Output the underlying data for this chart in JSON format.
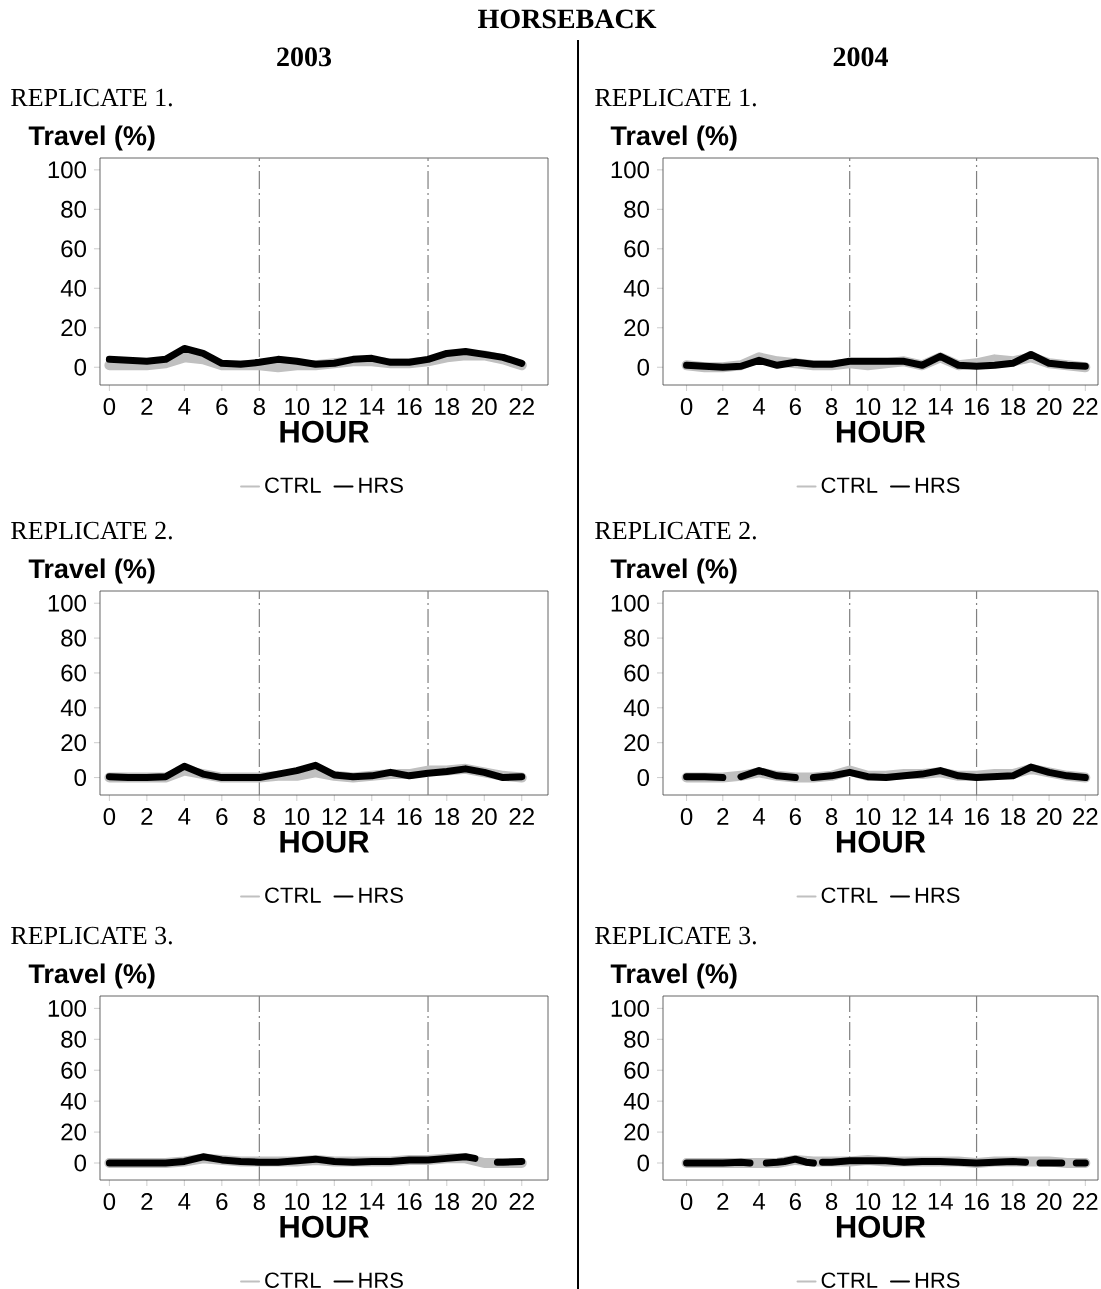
{
  "chart_data": [
    {
      "type": "line",
      "annotations": [
        "HORSEBACK"
      ],
      "title": "2003",
      "subtitle": "REPLICATE 1.",
      "xlabel": "HOUR",
      "ylabel": "Travel (%)",
      "x": [
        0,
        1,
        2,
        3,
        4,
        5,
        6,
        7,
        8,
        9,
        10,
        11,
        12,
        13,
        14,
        15,
        16,
        17,
        18,
        19,
        20,
        21,
        22
      ],
      "xlim": [
        -0.5,
        23.4
      ],
      "ylim": [
        -9,
        106
      ],
      "xticks": [
        0,
        2,
        4,
        6,
        8,
        10,
        12,
        14,
        16,
        18,
        20,
        22
      ],
      "yticks": [
        0,
        20,
        40,
        60,
        80,
        100
      ],
      "legend": "bottom",
      "ref_lines": [
        {
          "axis": "x",
          "value": 8,
          "color": "#808080"
        },
        {
          "axis": "x",
          "value": 17,
          "color": "#808080"
        }
      ],
      "series": [
        {
          "name": "CTRL",
          "color": "#c0c0c0",
          "values": [
            1,
            1,
            1,
            2,
            5,
            4,
            1,
            1,
            1,
            0,
            1,
            1,
            2,
            3,
            3,
            2,
            2,
            3,
            5,
            6,
            6,
            4,
            1
          ]
        },
        {
          "name": "HRS",
          "color": "#000000",
          "values": [
            4,
            3.5,
            3,
            4,
            9.5,
            7,
            2,
            1.5,
            2.5,
            4,
            3,
            1.5,
            2,
            4,
            4.5,
            2.5,
            2.5,
            4,
            7,
            8,
            6.5,
            5,
            2
          ]
        }
      ]
    },
    {
      "type": "line",
      "title": "2004",
      "subtitle": "REPLICATE 1.",
      "xlabel": "HOUR",
      "ylabel": "Travel (%)",
      "x": [
        0,
        1,
        2,
        3,
        4,
        5,
        6,
        7,
        8,
        9,
        10,
        11,
        12,
        13,
        14,
        15,
        16,
        17,
        18,
        19,
        20,
        21,
        22
      ],
      "xlim": [
        -1.3,
        22.7
      ],
      "ylim": [
        -9,
        106
      ],
      "xticks": [
        0,
        2,
        4,
        6,
        8,
        10,
        12,
        14,
        16,
        18,
        20,
        22
      ],
      "yticks": [
        0,
        20,
        40,
        60,
        80,
        100
      ],
      "legend": "bottom",
      "ref_lines": [
        {
          "axis": "x",
          "value": 9,
          "color": "#808080"
        },
        {
          "axis": "x",
          "value": 16,
          "color": "#808080"
        }
      ],
      "series": [
        {
          "name": "CTRL",
          "color": "#c0c0c0",
          "values": [
            1,
            0,
            0,
            1,
            5,
            3,
            2,
            1,
            1,
            2,
            1,
            2,
            3,
            1,
            5,
            1,
            2,
            4,
            3,
            5,
            2,
            1,
            0
          ]
        },
        {
          "name": "HRS",
          "color": "#000000",
          "values": [
            1,
            0.5,
            0,
            0.5,
            3.5,
            1,
            2.5,
            1.5,
            1.5,
            3,
            3,
            3,
            3,
            1,
            5.5,
            1,
            0.5,
            1,
            2,
            6.5,
            2,
            1,
            0.5
          ]
        }
      ]
    },
    {
      "type": "line",
      "subtitle": "REPLICATE 2.",
      "xlabel": "HOUR",
      "ylabel": "Travel (%)",
      "x": [
        0,
        1,
        2,
        3,
        4,
        5,
        6,
        7,
        8,
        9,
        10,
        11,
        12,
        13,
        14,
        15,
        16,
        17,
        18,
        19,
        20,
        21,
        22
      ],
      "xlim": [
        -0.5,
        23.4
      ],
      "ylim": [
        -10,
        107
      ],
      "xticks": [
        0,
        2,
        4,
        6,
        8,
        10,
        12,
        14,
        16,
        18,
        20,
        22
      ],
      "yticks": [
        0,
        20,
        40,
        60,
        80,
        100
      ],
      "legend": "bottom",
      "ref_lines": [
        {
          "axis": "x",
          "value": 8,
          "color": "#808080"
        },
        {
          "axis": "x",
          "value": 17,
          "color": "#808080"
        }
      ],
      "series": [
        {
          "name": "CTRL",
          "color": "#c0c0c0",
          "values": [
            0,
            0,
            0,
            0,
            4,
            2,
            0,
            0,
            0,
            1,
            1,
            3,
            1,
            0,
            1,
            2,
            2,
            4,
            4,
            5,
            3,
            1,
            0
          ]
        },
        {
          "name": "HRS",
          "color": "#000000",
          "values": [
            0.5,
            0,
            0,
            0.5,
            6.5,
            2,
            0,
            0,
            0,
            2,
            4,
            7,
            1.5,
            0.5,
            1,
            3,
            1,
            2.5,
            3.5,
            5,
            3,
            0,
            0.5
          ]
        }
      ]
    },
    {
      "type": "line",
      "subtitle": "REPLICATE 2.",
      "xlabel": "HOUR",
      "ylabel": "Travel (%)",
      "x": [
        0,
        1,
        2,
        3,
        4,
        5,
        6,
        7,
        8,
        9,
        10,
        11,
        12,
        13,
        14,
        15,
        16,
        17,
        18,
        19,
        20,
        21,
        22
      ],
      "xlim": [
        -1.3,
        22.7
      ],
      "ylim": [
        -10,
        107
      ],
      "xticks": [
        0,
        2,
        4,
        6,
        8,
        10,
        12,
        14,
        16,
        18,
        20,
        22
      ],
      "yticks": [
        0,
        20,
        40,
        60,
        80,
        100
      ],
      "legend": "bottom",
      "ref_lines": [
        {
          "axis": "x",
          "value": 9,
          "color": "#808080"
        },
        {
          "axis": "x",
          "value": 16,
          "color": "#808080"
        }
      ],
      "series": [
        {
          "name": "CTRL",
          "color": "#c0c0c0",
          "values": [
            0,
            0,
            0,
            1,
            3,
            1,
            0,
            0,
            1,
            4,
            1,
            1,
            2,
            2,
            3,
            1,
            1,
            2,
            2,
            5,
            3,
            1,
            0
          ]
        },
        {
          "name": "HRS",
          "color": "#000000",
          "x": [
            0,
            1,
            2,
            2.5,
            3,
            4,
            5,
            6,
            6.5,
            7,
            8,
            9,
            10,
            11,
            12,
            13,
            14,
            15,
            16,
            17,
            18,
            19,
            20,
            21,
            22
          ],
          "values": [
            0.5,
            0.5,
            0,
            null,
            0.5,
            4,
            1,
            0,
            null,
            0,
            1,
            3,
            0.5,
            0,
            1,
            2,
            4,
            1,
            0,
            0.5,
            1,
            6,
            3,
            1,
            0
          ]
        }
      ]
    },
    {
      "type": "line",
      "subtitle": "REPLICATE 3.",
      "xlabel": "HOUR",
      "ylabel": "Travel (%)",
      "x": [
        0,
        1,
        2,
        3,
        4,
        5,
        6,
        7,
        8,
        9,
        10,
        11,
        12,
        13,
        14,
        15,
        16,
        17,
        18,
        19,
        20,
        21,
        22
      ],
      "xlim": [
        -0.5,
        23.4
      ],
      "ylim": [
        -11,
        108
      ],
      "xticks": [
        0,
        2,
        4,
        6,
        8,
        10,
        12,
        14,
        16,
        18,
        20,
        22
      ],
      "yticks": [
        0,
        20,
        40,
        60,
        80,
        100
      ],
      "legend": "bottom",
      "ref_lines": [
        {
          "axis": "x",
          "value": 8,
          "color": "#808080"
        },
        {
          "axis": "x",
          "value": 17,
          "color": "#808080"
        }
      ],
      "series": [
        {
          "name": "CTRL",
          "color": "#c0c0c0",
          "values": [
            0,
            0,
            0,
            0,
            1,
            3,
            2,
            1,
            1,
            1,
            1,
            2,
            1,
            1,
            1,
            1,
            2,
            2,
            3,
            3,
            0,
            0,
            0
          ]
        },
        {
          "name": "HRS",
          "color": "#000000",
          "x": [
            0,
            1,
            2,
            3,
            4,
            5,
            6,
            7,
            8,
            9,
            10,
            11,
            12,
            13,
            14,
            15,
            16,
            17,
            18,
            19,
            19.5,
            20,
            20.7,
            21,
            22
          ],
          "values": [
            0,
            0,
            0,
            0,
            1,
            4,
            2,
            1,
            0.5,
            0.5,
            1.5,
            2.5,
            1,
            0.5,
            1,
            1,
            2,
            2,
            3,
            4,
            3,
            null,
            0.5,
            0.5,
            1
          ]
        }
      ]
    },
    {
      "type": "line",
      "subtitle": "REPLICATE 3.",
      "xlabel": "HOUR",
      "ylabel": "Travel (%)",
      "x": [
        0,
        1,
        2,
        3,
        4,
        5,
        6,
        7,
        8,
        9,
        10,
        11,
        12,
        13,
        14,
        15,
        16,
        17,
        18,
        19,
        20,
        21,
        22
      ],
      "xlim": [
        -1.3,
        22.7
      ],
      "ylim": [
        -11,
        108
      ],
      "xticks": [
        0,
        2,
        4,
        6,
        8,
        10,
        12,
        14,
        16,
        18,
        20,
        22
      ],
      "yticks": [
        0,
        20,
        40,
        60,
        80,
        100
      ],
      "legend": "bottom",
      "ref_lines": [
        {
          "axis": "x",
          "value": 9,
          "color": "#808080"
        },
        {
          "axis": "x",
          "value": 16,
          "color": "#808080"
        }
      ],
      "series": [
        {
          "name": "CTRL",
          "color": "#c0c0c0",
          "values": [
            0,
            0,
            0,
            0,
            0,
            0,
            2,
            1,
            1,
            1,
            2,
            1,
            1,
            1,
            1,
            1,
            0,
            1,
            1,
            1,
            1,
            0,
            0
          ]
        },
        {
          "name": "HRS",
          "color": "#000000",
          "x": [
            0,
            1,
            2,
            3,
            3.5,
            3.8,
            4.4,
            5,
            5.4,
            6,
            6.6,
            7,
            7.2,
            7.5,
            8,
            9,
            10,
            11,
            12,
            13,
            14,
            15,
            16,
            17,
            18,
            18.7,
            19.1,
            19.5,
            20,
            20.7,
            21.1,
            21.5,
            22
          ],
          "values": [
            0,
            0,
            0,
            0.5,
            0,
            null,
            0,
            0.5,
            1,
            2.5,
            0.5,
            0,
            null,
            0.5,
            0.5,
            1.5,
            1.5,
            1.5,
            0.5,
            1,
            1,
            0.5,
            0,
            0.5,
            1,
            0.5,
            null,
            0,
            0,
            0,
            null,
            0,
            0
          ]
        }
      ]
    }
  ]
}
